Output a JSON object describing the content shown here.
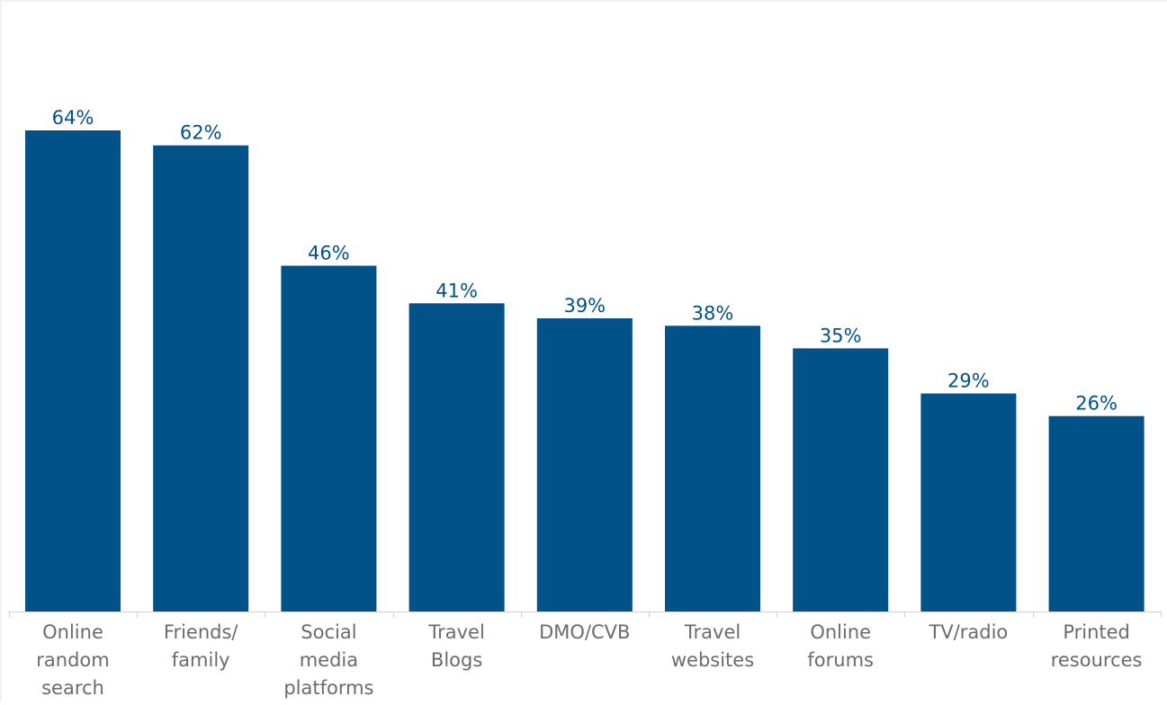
{
  "chart_data": {
    "type": "bar",
    "title": "",
    "xlabel": "",
    "ylabel": "",
    "categories": [
      [
        "Online",
        "random",
        "search"
      ],
      [
        "Friends/",
        "family"
      ],
      [
        "Social",
        "media",
        "platforms"
      ],
      [
        "Travel",
        "Blogs"
      ],
      [
        "DMO/CVB"
      ],
      [
        "Travel",
        "websites"
      ],
      [
        "Online",
        "forums"
      ],
      [
        "TV/radio"
      ],
      [
        "Printed",
        "resources"
      ]
    ],
    "values": [
      64,
      62,
      46,
      41,
      39,
      38,
      35,
      29,
      26
    ],
    "value_labels": [
      "64%",
      "62%",
      "46%",
      "41%",
      "39%",
      "38%",
      "35%",
      "29%",
      "26%"
    ],
    "ylim": [
      0,
      64
    ],
    "grid": false,
    "legend": "none"
  },
  "colors": {
    "bar": "#005288",
    "value_label": "#005288",
    "category_label": "#6b6b6b",
    "axis": "#d0d0d0",
    "frame": "#f0f2f5"
  }
}
